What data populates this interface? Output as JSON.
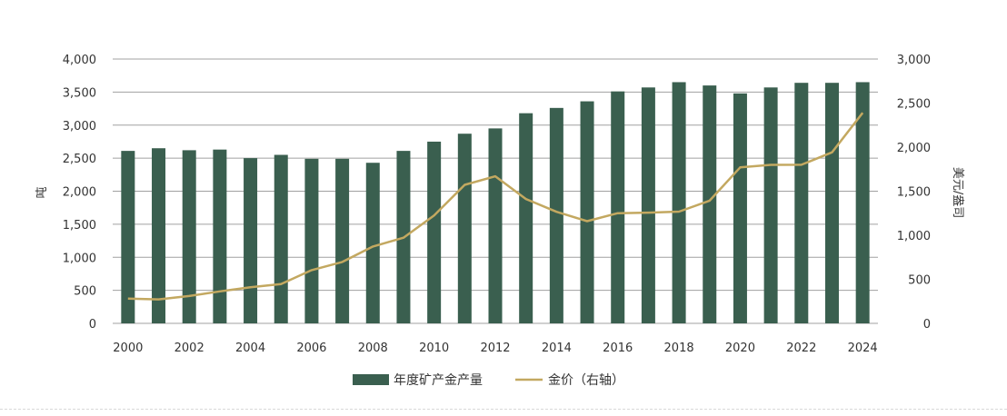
{
  "colors": {
    "bar": "#3a5f4f",
    "line": "#c3a860",
    "grid": "#a0a0a0",
    "text": "#333333"
  },
  "chart_data": {
    "type": "bar",
    "title": "",
    "xlabel": "",
    "ylabel": "吨",
    "y2label": "美元/盎司",
    "x": [
      2000,
      2001,
      2002,
      2003,
      2004,
      2005,
      2006,
      2007,
      2008,
      2009,
      2010,
      2011,
      2012,
      2013,
      2014,
      2015,
      2016,
      2017,
      2018,
      2019,
      2020,
      2021,
      2022,
      2023,
      2024
    ],
    "x_tick_labels": [
      "2000",
      "2002",
      "2004",
      "2006",
      "2008",
      "2010",
      "2012",
      "2014",
      "2016",
      "2018",
      "2020",
      "2022",
      "2024"
    ],
    "ylim": [
      0,
      4000
    ],
    "y_ticks": [
      0,
      500,
      1000,
      1500,
      2000,
      2500,
      3000,
      3500,
      4000
    ],
    "y_tick_labels": [
      "0",
      "500",
      "1,000",
      "1,500",
      "2,000",
      "2,500",
      "3,000",
      "3,500",
      "4,000"
    ],
    "y2lim": [
      0,
      3000
    ],
    "y2_ticks": [
      0,
      500,
      1000,
      1500,
      2000,
      2500,
      3000
    ],
    "y2_tick_labels": [
      "0",
      "500",
      "1,000",
      "1,500",
      "2,000",
      "2,500",
      "3,000"
    ],
    "grid": true,
    "legend_position": "bottom",
    "series": [
      {
        "name": "年度矿产金产量",
        "type": "bar",
        "axis": "left",
        "values": [
          2610,
          2650,
          2620,
          2630,
          2500,
          2550,
          2490,
          2490,
          2430,
          2610,
          2750,
          2870,
          2950,
          3180,
          3260,
          3360,
          3510,
          3570,
          3650,
          3600,
          3480,
          3570,
          3640,
          3640,
          3650
        ]
      },
      {
        "name": "金价（右轴）",
        "type": "line",
        "axis": "right",
        "values": [
          280,
          272,
          310,
          363,
          410,
          445,
          604,
          697,
          872,
          972,
          1225,
          1572,
          1669,
          1411,
          1266,
          1160,
          1251,
          1257,
          1268,
          1393,
          1770,
          1799,
          1800,
          1941,
          2390
        ]
      }
    ]
  }
}
